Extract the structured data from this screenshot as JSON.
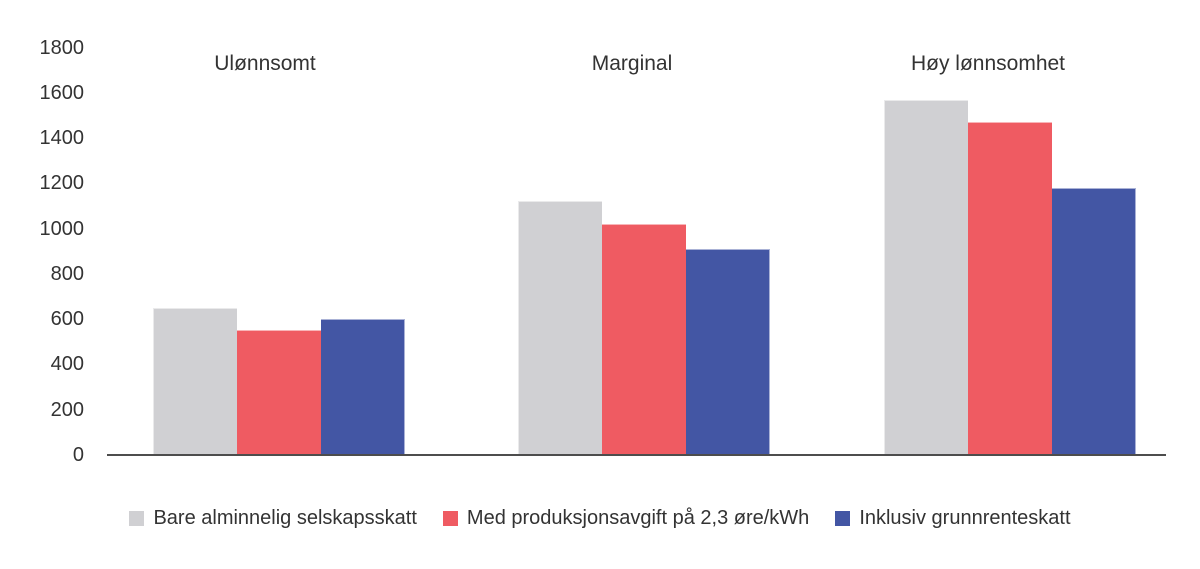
{
  "chart_data": {
    "type": "bar",
    "title": "",
    "xlabel": "",
    "ylabel": "",
    "categories": [
      "Ulønnsomt",
      "Marginal",
      "Høy lønnsomhet"
    ],
    "series": [
      {
        "name": "Bare alminnelig selskapsskatt",
        "color": "#d0d0d3",
        "values": [
          650,
          1120,
          1570
        ]
      },
      {
        "name": "Med produksjonsavgift på 2,3 øre/kWh",
        "color": "#ef5b62",
        "values": [
          550,
          1020,
          1470
        ]
      },
      {
        "name": "Inklusiv grunnrenteskatt",
        "color": "#4356a4",
        "values": [
          600,
          910,
          1180
        ]
      }
    ],
    "ylim": [
      0,
      1800
    ],
    "yticks": [
      0,
      200,
      400,
      600,
      800,
      1000,
      1200,
      1400,
      1600,
      1800
    ],
    "grid": false,
    "legend_position": "bottom",
    "axis_color": "#4d4d4d",
    "text_color": "#333333",
    "bar_edge_color": "rgba(255,255,255,0.55)"
  }
}
